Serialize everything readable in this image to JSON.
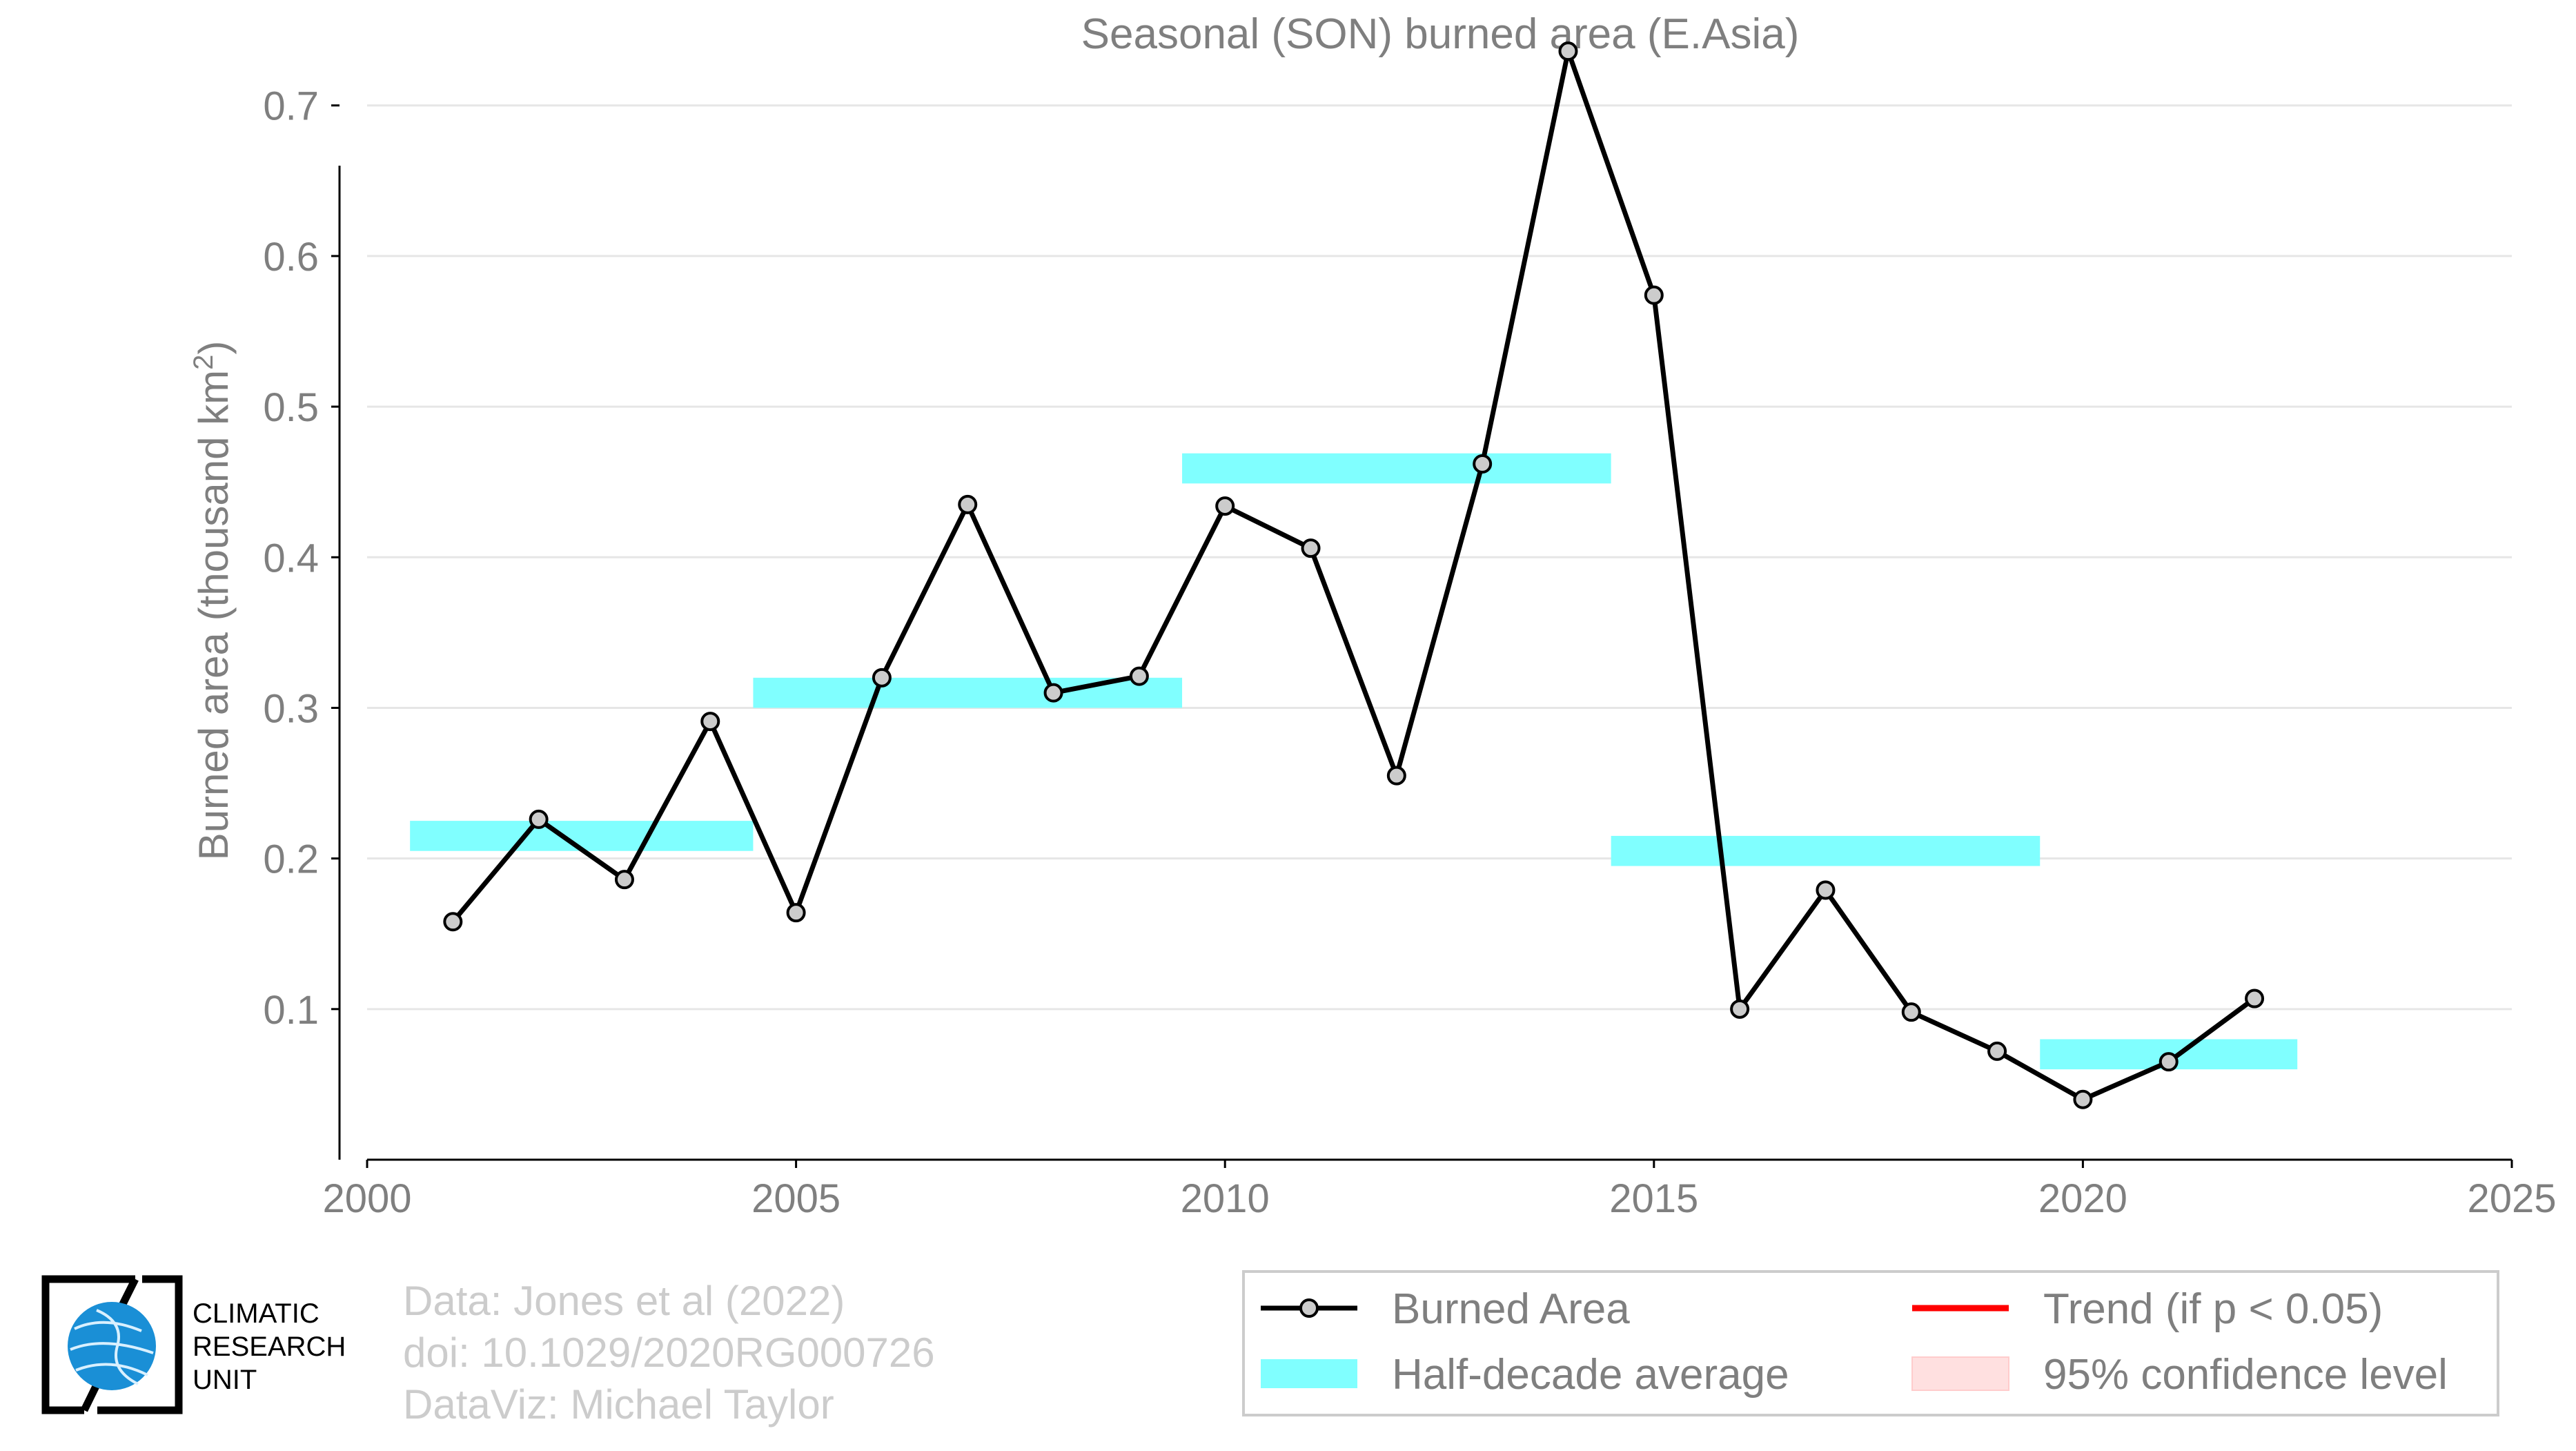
{
  "chart_data": {
    "type": "line",
    "title": "Seasonal (SON) burned area (E.Asia)",
    "ylabel": "Burned area (thousand km",
    "ylabel_sup": "2",
    "ylabel_close": ")",
    "xlabel": "",
    "xlim": [
      2000,
      2025
    ],
    "ylim": [
      0,
      0.77
    ],
    "x_ticks": [
      2000,
      2005,
      2010,
      2015,
      2020,
      2025
    ],
    "y_ticks": [
      0.1,
      0.2,
      0.3,
      0.4,
      0.5,
      0.6,
      0.7
    ],
    "grid": "horizontal",
    "legend_position": "bottom-right",
    "series": [
      {
        "name": "Burned Area",
        "color": "#000000",
        "marker_color": "#cccccc",
        "x": [
          2001,
          2002,
          2003,
          2004,
          2005,
          2006,
          2007,
          2008,
          2009,
          2010,
          2011,
          2012,
          2013,
          2014,
          2015,
          2016,
          2017,
          2018,
          2019,
          2020,
          2021,
          2022
        ],
        "values": [
          0.158,
          0.226,
          0.186,
          0.291,
          0.164,
          0.32,
          0.435,
          0.31,
          0.321,
          0.434,
          0.406,
          0.255,
          0.462,
          0.736,
          0.574,
          0.1,
          0.179,
          0.098,
          0.072,
          0.04,
          0.065,
          0.107
        ]
      }
    ],
    "half_decade_averages": {
      "name": "Half-decade average",
      "color": "#80ffff",
      "band_height": 0.02,
      "segments": [
        {
          "x_start": 2000.5,
          "x_end": 2004.5,
          "value": 0.215
        },
        {
          "x_start": 2004.5,
          "x_end": 2009.5,
          "value": 0.31
        },
        {
          "x_start": 2009.5,
          "x_end": 2014.5,
          "value": 0.459
        },
        {
          "x_start": 2014.5,
          "x_end": 2019.5,
          "value": 0.205
        },
        {
          "x_start": 2019.5,
          "x_end": 2022.5,
          "value": 0.07
        }
      ]
    },
    "legend": {
      "burned_area": "Burned Area",
      "half_decade": "Half-decade average",
      "trend": "Trend (if p < 0.05)",
      "confidence": "95% confidence level"
    },
    "colors": {
      "trend": "#ff0000",
      "confidence": "#ffe0e0",
      "text": "#7f7f7f",
      "credits": "#cccccc",
      "grid": "#e6e6e6"
    }
  },
  "credits": {
    "line1": "Data: Jones et al (2022)",
    "line2": "doi: 10.1029/2020RG000726",
    "line3": "DataViz: Michael Taylor"
  },
  "logo": {
    "line1": "CLIMATIC",
    "line2": "RESEARCH",
    "line3": "UNIT",
    "color": "#1a8fd6"
  }
}
